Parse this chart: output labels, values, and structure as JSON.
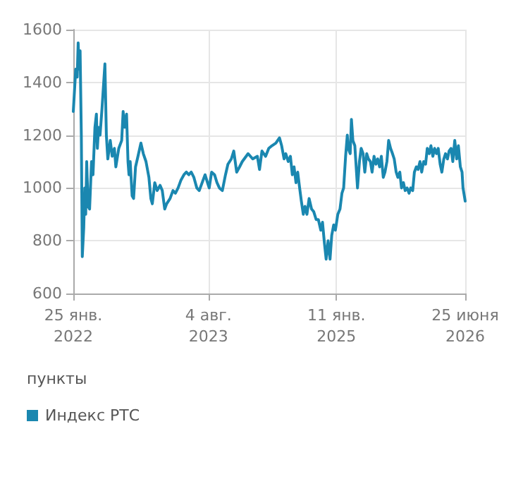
{
  "chart_data": {
    "type": "line",
    "ylabel": "пункты",
    "x": [
      "2022-01-25",
      "2022-02-04",
      "2022-02-10",
      "2022-02-14",
      "2022-02-18",
      "2022-02-22",
      "2022-02-27",
      "2022-03-03",
      "2022-03-09",
      "2022-03-13",
      "2022-03-17",
      "2022-03-21",
      "2022-03-27",
      "2022-04-02",
      "2022-04-10",
      "2022-04-16",
      "2022-04-24",
      "2022-04-30",
      "2022-05-04",
      "2022-05-09",
      "2022-05-15",
      "2022-05-23",
      "2022-06-04",
      "2022-06-10",
      "2022-06-16",
      "2022-06-26",
      "2022-07-04",
      "2022-07-13",
      "2022-07-19",
      "2022-07-31",
      "2022-08-12",
      "2022-08-18",
      "2022-08-24",
      "2022-09-01",
      "2022-09-07",
      "2022-09-11",
      "2022-09-16",
      "2022-09-24",
      "2022-09-30",
      "2022-10-08",
      "2022-10-18",
      "2022-10-30",
      "2022-11-09",
      "2022-11-20",
      "2022-12-02",
      "2022-12-10",
      "2022-12-16",
      "2022-12-26",
      "2023-01-05",
      "2023-01-17",
      "2023-01-26",
      "2023-02-05",
      "2023-02-13",
      "2023-02-27",
      "2023-03-11",
      "2023-03-21",
      "2023-04-01",
      "2023-04-13",
      "2023-04-25",
      "2023-05-05",
      "2023-05-15",
      "2023-05-25",
      "2023-06-05",
      "2023-06-17",
      "2023-06-27",
      "2023-07-09",
      "2023-07-21",
      "2023-07-31",
      "2023-08-07",
      "2023-08-17",
      "2023-08-29",
      "2023-09-08",
      "2023-09-18",
      "2023-09-30",
      "2023-10-13",
      "2023-10-23",
      "2023-11-06",
      "2023-11-16",
      "2023-11-28",
      "2023-12-10",
      "2023-12-21",
      "2024-01-14",
      "2024-02-02",
      "2024-02-21",
      "2024-03-01",
      "2024-03-11",
      "2024-03-26",
      "2024-04-08",
      "2024-04-21",
      "2024-05-07",
      "2024-05-22",
      "2024-05-31",
      "2024-06-10",
      "2024-06-17",
      "2024-06-27",
      "2024-07-06",
      "2024-07-14",
      "2024-07-21",
      "2024-07-29",
      "2024-08-05",
      "2024-08-13",
      "2024-08-20",
      "2024-08-28",
      "2024-09-04",
      "2024-09-12",
      "2024-09-21",
      "2024-10-01",
      "2024-10-10",
      "2024-10-20",
      "2024-10-29",
      "2024-11-08",
      "2024-11-15",
      "2024-11-23",
      "2024-11-30",
      "2024-12-08",
      "2024-12-16",
      "2024-12-23",
      "2024-12-31",
      "2025-01-07",
      "2025-01-17",
      "2025-01-26",
      "2025-02-03",
      "2025-02-10",
      "2025-02-18",
      "2025-02-25",
      "2025-03-01",
      "2025-03-09",
      "2025-03-14",
      "2025-03-20",
      "2025-03-28",
      "2025-04-08",
      "2025-04-16",
      "2025-04-23",
      "2025-05-01",
      "2025-05-08",
      "2025-05-16",
      "2025-05-23",
      "2025-05-31",
      "2025-06-07",
      "2025-06-15",
      "2025-06-23",
      "2025-06-30",
      "2025-07-08",
      "2025-07-15",
      "2025-07-23",
      "2025-07-30",
      "2025-08-07",
      "2025-08-14",
      "2025-08-22",
      "2025-08-30",
      "2025-09-06",
      "2025-09-14",
      "2025-09-21",
      "2025-09-29",
      "2025-10-06",
      "2025-10-14",
      "2025-10-21",
      "2025-10-29",
      "2025-11-06",
      "2025-11-13",
      "2025-11-21",
      "2025-11-28",
      "2025-12-06",
      "2025-12-13",
      "2025-12-21",
      "2025-12-28",
      "2026-01-05",
      "2026-01-13",
      "2026-01-20",
      "2026-01-28",
      "2026-02-04",
      "2026-02-12",
      "2026-02-19",
      "2026-02-27",
      "2026-03-06",
      "2026-03-14",
      "2026-03-21",
      "2026-03-29",
      "2026-04-05",
      "2026-04-13",
      "2026-04-20",
      "2026-04-28",
      "2026-05-05",
      "2026-05-13",
      "2026-05-21",
      "2026-05-28",
      "2026-06-05",
      "2026-06-12",
      "2026-06-16",
      "2026-06-25"
    ],
    "series": [
      {
        "name": "Индекс РТС",
        "color": "#1a87b0",
        "values": [
          1290,
          1450,
          1420,
          1550,
          1450,
          1520,
          1200,
          740,
          850,
          1000,
          900,
          1100,
          930,
          920,
          1100,
          1050,
          1230,
          1280,
          1150,
          1230,
          1200,
          1300,
          1470,
          1200,
          1110,
          1180,
          1120,
          1150,
          1080,
          1150,
          1180,
          1290,
          1230,
          1280,
          1100,
          1050,
          1100,
          970,
          960,
          1080,
          1120,
          1170,
          1130,
          1100,
          1040,
          960,
          940,
          1020,
          990,
          1010,
          990,
          920,
          940,
          960,
          990,
          980,
          1000,
          1030,
          1050,
          1060,
          1050,
          1060,
          1040,
          1000,
          990,
          1020,
          1050,
          1020,
          1000,
          1060,
          1050,
          1020,
          1000,
          990,
          1050,
          1090,
          1110,
          1140,
          1060,
          1080,
          1100,
          1130,
          1110,
          1120,
          1070,
          1140,
          1120,
          1150,
          1160,
          1170,
          1190,
          1160,
          1110,
          1130,
          1100,
          1120,
          1050,
          1080,
          1020,
          1060,
          1000,
          950,
          900,
          930,
          900,
          960,
          920,
          910,
          880,
          880,
          840,
          870,
          790,
          730,
          800,
          730,
          820,
          860,
          840,
          900,
          920,
          980,
          1000,
          1120,
          1200,
          1150,
          1130,
          1260,
          1180,
          1160,
          1000,
          1100,
          1150,
          1130,
          1060,
          1130,
          1110,
          1100,
          1060,
          1120,
          1090,
          1110,
          1080,
          1120,
          1040,
          1060,
          1100,
          1180,
          1150,
          1130,
          1110,
          1060,
          1040,
          1060,
          1000,
          1020,
          990,
          1000,
          980,
          1000,
          990,
          1060,
          1080,
          1070,
          1100,
          1060,
          1100,
          1090,
          1150,
          1130,
          1160,
          1120,
          1150,
          1130,
          1150,
          1090,
          1060,
          1110,
          1130,
          1110,
          1140,
          1150,
          1100,
          1180,
          1110,
          1160,
          1080,
          1060,
          1000,
          950
        ]
      }
    ],
    "xlim": [
      "2022-01-25",
      "2026-06-25"
    ],
    "xticks": [
      {
        "value": "2022-01-25",
        "label": "25 янв.\n2022"
      },
      {
        "value": "2023-08-04",
        "label": "4 авг.\n2023"
      },
      {
        "value": "2025-01-11",
        "label": "11 янв.\n2025"
      },
      {
        "value": "2026-06-25",
        "label": "25 июня\n2026"
      }
    ],
    "ylim": [
      600,
      1600
    ],
    "yticks": [
      600,
      800,
      1000,
      1200,
      1400,
      1600
    ],
    "grid": true,
    "legend": "bottom left",
    "marker": "none",
    "line_style": "solid"
  }
}
